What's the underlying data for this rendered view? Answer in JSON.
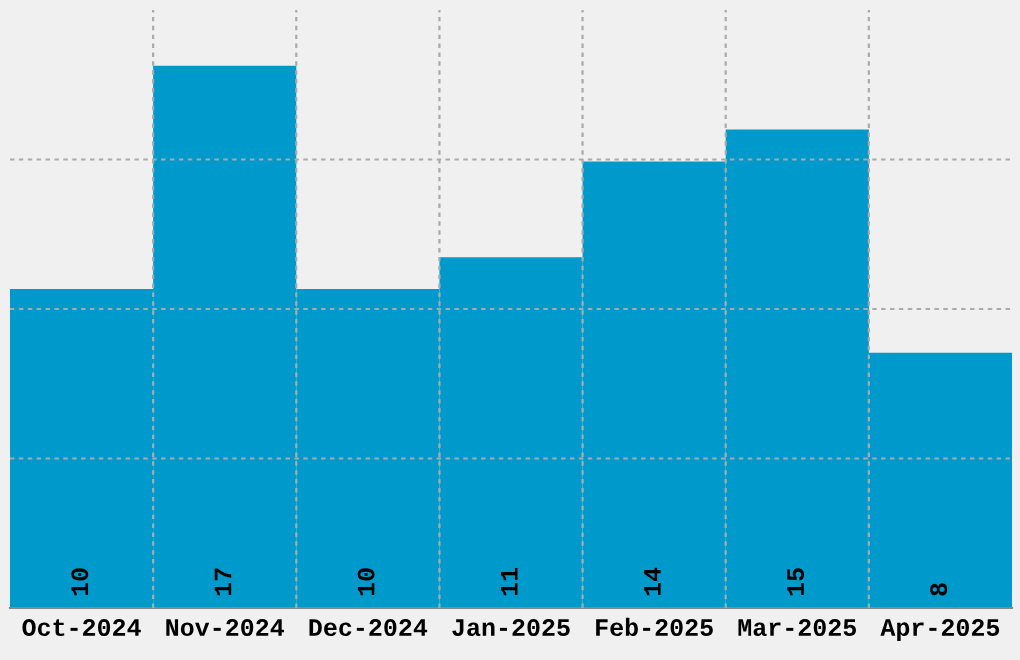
{
  "chart_data": {
    "type": "bar",
    "categories": [
      "Oct-2024",
      "Nov-2024",
      "Dec-2024",
      "Jan-2025",
      "Feb-2025",
      "Mar-2025",
      "Apr-2025"
    ],
    "values": [
      10,
      17,
      10,
      11,
      14,
      15,
      8
    ],
    "color": "#0099cc",
    "ylim": [
      0,
      18.75
    ],
    "yticks": [
      {
        "value": 4.6875,
        "label": null
      },
      {
        "value": 9.375,
        "label": null
      },
      {
        "value": 14.0625,
        "label": null
      }
    ],
    "tick_labels": "x",
    "grid": true,
    "data_labels": true
  }
}
